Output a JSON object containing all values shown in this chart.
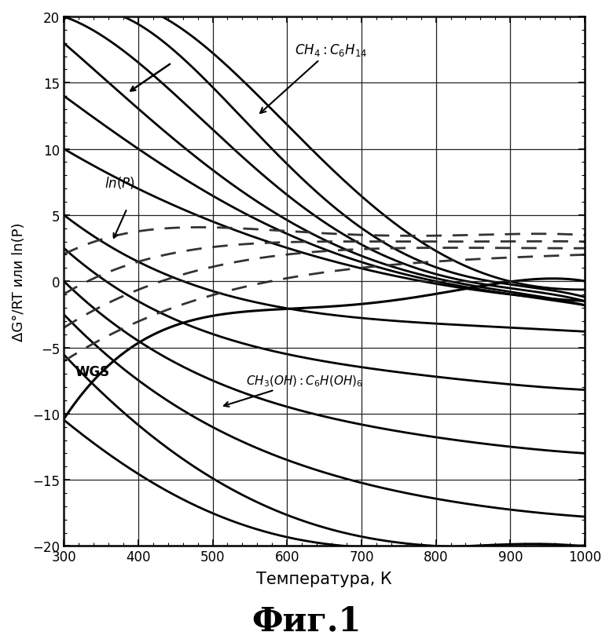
{
  "title": "Фиг.1",
  "xlabel": "Температура, К",
  "ylabel": "ΔG°/RT или ln(P)",
  "xlim": [
    300,
    1000
  ],
  "ylim": [
    -20,
    20
  ],
  "xticks": [
    300,
    400,
    500,
    600,
    700,
    800,
    900,
    1000
  ],
  "yticks": [
    -20,
    -15,
    -10,
    -5,
    0,
    5,
    10,
    15,
    20
  ],
  "line_color": "#000000",
  "dashed_color": "#333333",
  "alkane_curves": [
    [
      300,
      10.0,
      400,
      7.0,
      500,
      4.5,
      600,
      2.5,
      700,
      1.0,
      800,
      -0.2,
      900,
      -1.0,
      1000,
      -1.5
    ],
    [
      300,
      14.0,
      400,
      10.0,
      500,
      6.5,
      600,
      3.5,
      700,
      1.5,
      800,
      0.0,
      900,
      -1.0,
      1000,
      -1.8
    ],
    [
      300,
      18.0,
      400,
      13.0,
      500,
      8.5,
      600,
      4.5,
      700,
      2.0,
      800,
      0.2,
      900,
      -0.8,
      1000,
      -1.8
    ],
    [
      300,
      20.0,
      400,
      16.5,
      500,
      11.5,
      600,
      6.5,
      700,
      2.8,
      800,
      0.5,
      900,
      -0.5,
      1000,
      -1.5
    ],
    [
      300,
      20.0,
      400,
      19.5,
      500,
      14.5,
      600,
      9.0,
      700,
      4.0,
      800,
      1.0,
      900,
      -0.2,
      1000,
      -1.2
    ],
    [
      300,
      20.0,
      400,
      20.0,
      500,
      18.0,
      600,
      12.0,
      700,
      6.0,
      800,
      2.0,
      900,
      0.5,
      1000,
      -0.8
    ]
  ],
  "alcohol_curves": [
    [
      300,
      5.0,
      400,
      1.5,
      500,
      -0.8,
      600,
      -2.0,
      700,
      -2.8,
      800,
      -3.2,
      900,
      -3.5,
      1000,
      -3.8
    ],
    [
      300,
      2.5,
      400,
      -1.5,
      500,
      -4.0,
      600,
      -5.5,
      700,
      -6.5,
      800,
      -7.2,
      900,
      -7.8,
      1000,
      -8.2
    ],
    [
      300,
      0.0,
      400,
      -4.5,
      500,
      -7.5,
      600,
      -9.5,
      700,
      -10.8,
      800,
      -11.8,
      900,
      -12.5,
      1000,
      -13.0
    ],
    [
      300,
      -2.5,
      400,
      -7.5,
      500,
      -11.0,
      600,
      -13.5,
      700,
      -15.2,
      800,
      -16.5,
      900,
      -17.2,
      1000,
      -17.8
    ],
    [
      300,
      -5.5,
      400,
      -11.0,
      500,
      -14.8,
      600,
      -17.5,
      700,
      -19.5,
      800,
      -20.0,
      900,
      -20.0,
      1000,
      -20.0
    ],
    [
      300,
      -10.5,
      400,
      -14.5,
      500,
      -17.5,
      600,
      -19.5,
      700,
      -20.0,
      800,
      -20.0,
      900,
      -20.0,
      1000,
      -20.0
    ]
  ],
  "wgs_curve": [
    300,
    -10.5,
    350,
    -7.0,
    380,
    -5.2,
    420,
    -3.8,
    500,
    -3.0,
    600,
    -2.2,
    700,
    -1.5,
    800,
    -0.8,
    900,
    -0.3,
    1000,
    0.1
  ],
  "lnp_curves": [
    [
      300,
      2.0,
      350,
      3.2,
      400,
      3.8,
      500,
      4.0,
      600,
      3.8,
      700,
      3.5,
      800,
      3.5,
      900,
      3.5,
      1000,
      3.5
    ],
    [
      300,
      -1.0,
      350,
      0.5,
      400,
      1.5,
      500,
      2.5,
      600,
      3.0,
      700,
      3.0,
      800,
      3.0,
      900,
      3.0,
      1000,
      3.0
    ],
    [
      300,
      -3.5,
      350,
      -2.0,
      400,
      -0.5,
      500,
      1.0,
      600,
      2.0,
      700,
      2.5,
      800,
      2.5,
      900,
      2.5,
      1000,
      2.5
    ],
    [
      300,
      -6.0,
      350,
      -4.5,
      400,
      -3.0,
      500,
      -1.0,
      600,
      0.2,
      700,
      1.0,
      800,
      1.5,
      900,
      1.8,
      1000,
      2.0
    ]
  ]
}
